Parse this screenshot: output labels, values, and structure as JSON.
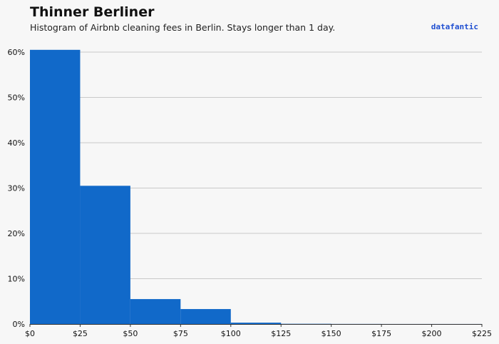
{
  "header": {
    "title": "Thinner Berliner",
    "subtitle": "Histogram of Airbnb cleaning fees in Berlin. Stays longer than 1 day.",
    "brand": "datafantic"
  },
  "colors": {
    "bar": "#1169c9",
    "grid": "#c9c9c9",
    "axis": "#333333",
    "background": "#f7f7f7"
  },
  "chart_data": {
    "type": "bar",
    "title": "Thinner Berliner",
    "subtitle": "Histogram of Airbnb cleaning fees in Berlin. Stays longer than 1 day.",
    "xlabel": "",
    "ylabel": "",
    "bins": [
      {
        "start": 0,
        "end": 25,
        "value": 60.5
      },
      {
        "start": 25,
        "end": 50,
        "value": 30.5
      },
      {
        "start": 50,
        "end": 75,
        "value": 5.5
      },
      {
        "start": 75,
        "end": 100,
        "value": 3.3
      },
      {
        "start": 100,
        "end": 125,
        "value": 0.3
      },
      {
        "start": 125,
        "end": 150,
        "value": 0.05
      },
      {
        "start": 150,
        "end": 175,
        "value": 0.02
      },
      {
        "start": 175,
        "end": 200,
        "value": 0.01
      },
      {
        "start": 200,
        "end": 225,
        "value": 0.01
      }
    ],
    "xlim": [
      0,
      225
    ],
    "ylim": [
      0,
      61
    ],
    "x_ticks": [
      0,
      25,
      50,
      75,
      100,
      125,
      150,
      175,
      200,
      225
    ],
    "x_tick_labels": [
      "$0",
      "$25",
      "$50",
      "$75",
      "$100",
      "$125",
      "$150",
      "$175",
      "$200",
      "$225"
    ],
    "y_ticks": [
      0,
      10,
      20,
      30,
      40,
      50,
      60
    ],
    "y_tick_labels": [
      "0%",
      "10%",
      "20%",
      "30%",
      "40%",
      "50%",
      "60%"
    ],
    "grid": "horizontal",
    "legend": "none"
  }
}
